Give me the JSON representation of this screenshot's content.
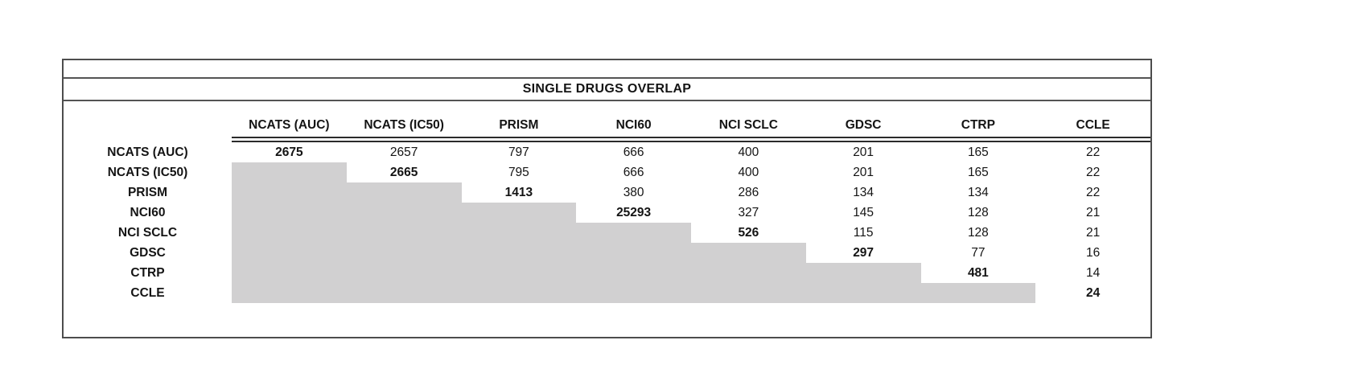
{
  "page": {
    "background_color": "#ffffff"
  },
  "table": {
    "title": "SINGLE DRUGS OVERLAP",
    "columns": [
      "NCATS (AUC)",
      "NCATS (IC50)",
      "PRISM",
      "NCI60",
      "NCI SCLC",
      "GDSC",
      "CTRP",
      "CCLE"
    ],
    "rows": [
      {
        "label": "NCATS (AUC)",
        "values": [
          "2675",
          "2657",
          "797",
          "666",
          "400",
          "201",
          "165",
          "22"
        ]
      },
      {
        "label": "NCATS (IC50)",
        "values": [
          null,
          "2665",
          "795",
          "666",
          "400",
          "201",
          "165",
          "22"
        ]
      },
      {
        "label": "PRISM",
        "values": [
          null,
          null,
          "1413",
          "380",
          "286",
          "134",
          "134",
          "22"
        ]
      },
      {
        "label": "NCI60",
        "values": [
          null,
          null,
          null,
          "25293",
          "327",
          "145",
          "128",
          "21"
        ]
      },
      {
        "label": "NCI SCLC",
        "values": [
          null,
          null,
          null,
          null,
          "526",
          "115",
          "128",
          "21"
        ]
      },
      {
        "label": "GDSC",
        "values": [
          null,
          null,
          null,
          null,
          null,
          "297",
          "77",
          "16"
        ]
      },
      {
        "label": "CTRP",
        "values": [
          null,
          null,
          null,
          null,
          null,
          null,
          "481",
          "14"
        ]
      },
      {
        "label": "CCLE",
        "values": [
          null,
          null,
          null,
          null,
          null,
          null,
          null,
          "24"
        ]
      }
    ],
    "styles": {
      "lower_triangle_fill": "#d1d0d1",
      "border_color": "#4d4d4d",
      "rule_color": "#2b2b2b",
      "text_color": "#141414",
      "diagonal_bold": true
    }
  },
  "chart_data": {
    "type": "table",
    "title": "SINGLE DRUGS OVERLAP",
    "columns": [
      "NCATS (AUC)",
      "NCATS (IC50)",
      "PRISM",
      "NCI60",
      "NCI SCLC",
      "GDSC",
      "CTRP",
      "CCLE"
    ],
    "row_labels": [
      "NCATS (AUC)",
      "NCATS (IC50)",
      "PRISM",
      "NCI60",
      "NCI SCLC",
      "GDSC",
      "CTRP",
      "CCLE"
    ],
    "matrix": [
      [
        2675,
        2657,
        797,
        666,
        400,
        201,
        165,
        22
      ],
      [
        null,
        2665,
        795,
        666,
        400,
        201,
        165,
        22
      ],
      [
        null,
        null,
        1413,
        380,
        286,
        134,
        134,
        22
      ],
      [
        null,
        null,
        null,
        25293,
        327,
        145,
        128,
        21
      ],
      [
        null,
        null,
        null,
        null,
        526,
        115,
        128,
        21
      ],
      [
        null,
        null,
        null,
        null,
        null,
        297,
        77,
        16
      ],
      [
        null,
        null,
        null,
        null,
        null,
        null,
        481,
        14
      ],
      [
        null,
        null,
        null,
        null,
        null,
        null,
        null,
        24
      ]
    ],
    "diagonal_values_bold": [
      2675,
      2665,
      1413,
      25293,
      526,
      297,
      481,
      24
    ],
    "layout": {
      "lower_triangle": "shaded gray, no values",
      "upper_triangle": "pairwise overlap counts",
      "diagonal": "total drug count per dataset, bold",
      "grid": "no internal vertical lines; double rule under column headers"
    }
  }
}
